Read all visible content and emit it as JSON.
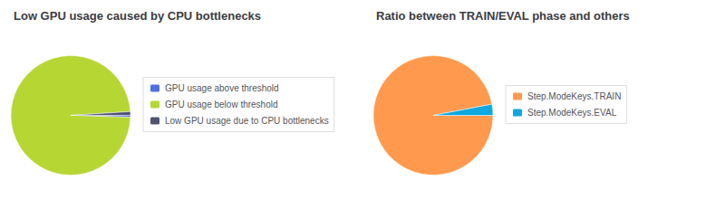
{
  "chart_data": [
    {
      "type": "pie",
      "title": "Low GPU usage caused by CPU bottlenecks",
      "categories": [
        "GPU usage above threshold",
        "GPU usage below threshold",
        "Low GPU usage due to CPU bottlenecks"
      ],
      "values": [
        0.5,
        98.5,
        1.0
      ],
      "legend": "right"
    },
    {
      "type": "pie",
      "title": "Ratio between TRAIN/EVAL phase and others",
      "categories": [
        "Step.ModeKeys.TRAIN",
        "Step.ModeKeys.EVAL"
      ],
      "values": [
        97,
        3
      ],
      "legend": "right"
    }
  ]
}
